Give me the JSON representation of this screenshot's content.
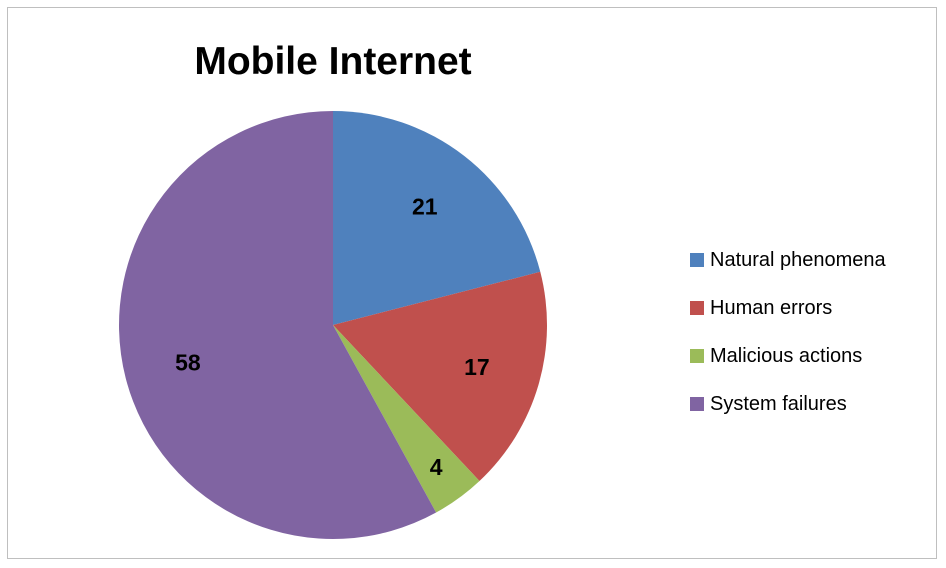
{
  "chart_data": {
    "type": "pie",
    "title": "Mobile Internet",
    "categories": [
      "Natural phenomena",
      "Human errors",
      "Malicious actions",
      "System failures"
    ],
    "values": [
      21,
      17,
      4,
      58
    ],
    "data_labels": [
      "21",
      "17",
      "4",
      "58"
    ],
    "colors": [
      "#4f81bd",
      "#c0504d",
      "#9bbb59",
      "#8064a2"
    ],
    "legend_position": "right",
    "start_angle": "top",
    "direction": "clockwise"
  }
}
